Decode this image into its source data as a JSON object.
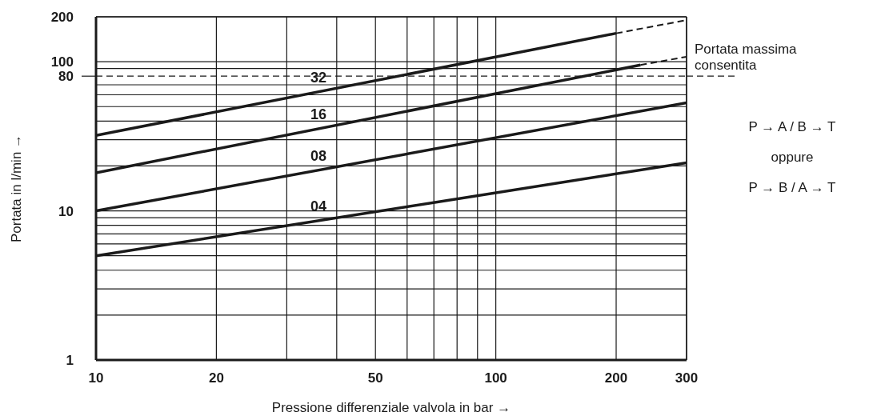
{
  "chart_data": {
    "type": "line",
    "xlabel": "Pressione differenziale valvola in bar →",
    "ylabel": "Portata in l/min →",
    "log": "xy",
    "xlim": [
      10,
      300
    ],
    "ylim": [
      1,
      200
    ],
    "xticks": [
      10,
      20,
      {
        "value": 30,
        "label": null
      },
      {
        "value": 40,
        "label": null
      },
      50,
      {
        "value": 60,
        "label": null
      },
      {
        "value": 70,
        "label": null
      },
      {
        "value": 80,
        "label": null
      },
      {
        "value": 90,
        "label": null
      },
      100,
      200,
      300
    ],
    "yticks": [
      1,
      {
        "value": 2,
        "label": null
      },
      {
        "value": 3,
        "label": null
      },
      {
        "value": 4,
        "label": null
      },
      {
        "value": 5,
        "label": null
      },
      {
        "value": 6,
        "label": null
      },
      {
        "value": 7,
        "label": null
      },
      {
        "value": 8,
        "label": null
      },
      {
        "value": 9,
        "label": null
      },
      10,
      {
        "value": 20,
        "label": null
      },
      {
        "value": 30,
        "label": null
      },
      {
        "value": 40,
        "label": null
      },
      {
        "value": 50,
        "label": null
      },
      {
        "value": 60,
        "label": null
      },
      {
        "value": 70,
        "label": null
      },
      80,
      {
        "value": 90,
        "label": null
      },
      100,
      200
    ],
    "grid": true,
    "marker": "none",
    "series": [
      {
        "name": "32",
        "color": "#1a1a1a",
        "x": [
          10,
          200
        ],
        "values": [
          32,
          155
        ],
        "line_style": "solid"
      },
      {
        "color": "#1a1a1a",
        "x": [
          200,
          300
        ],
        "values": [
          155,
          190
        ],
        "line_style": "dashed"
      },
      {
        "name": "16",
        "color": "#1a1a1a",
        "x": [
          10,
          230
        ],
        "values": [
          18,
          95
        ],
        "line_style": "solid"
      },
      {
        "color": "#1a1a1a",
        "x": [
          230,
          300
        ],
        "values": [
          95,
          108
        ],
        "line_style": "dashed"
      },
      {
        "name": "08",
        "color": "#1a1a1a",
        "x": [
          10,
          300
        ],
        "values": [
          10,
          53
        ],
        "line_style": "solid"
      },
      {
        "name": "04",
        "color": "#1a1a1a",
        "x": [
          10,
          300
        ],
        "values": [
          5,
          21
        ],
        "line_style": "solid"
      }
    ],
    "ref_lines": [
      {
        "axis": "y",
        "value": 80,
        "label": "Portata massima consentita",
        "line_style": "dashed",
        "color": "#1a1a1a"
      }
    ],
    "annotations": [
      "P → A / B → T",
      "oppure",
      "P → B / A → T"
    ]
  }
}
